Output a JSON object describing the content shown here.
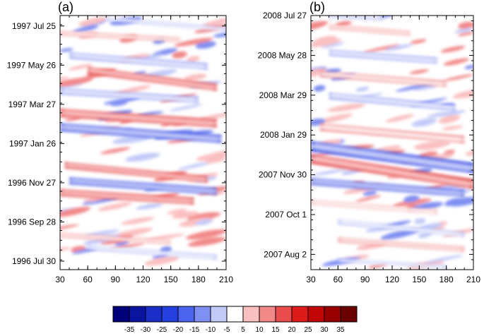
{
  "chart_data": [
    {
      "type": "heatmap",
      "panel_label": "(a)",
      "xticks": [
        "30",
        "60",
        "90",
        "120",
        "150",
        "180",
        "210"
      ],
      "xlim": [
        30,
        210
      ],
      "yticks": [
        "1997 Jul 25",
        "1997 May 26",
        "1997 Mar 27",
        "1997 Jan 26",
        "1996 Nov 27",
        "1996 Sep 28",
        "1996 Jul 30"
      ],
      "ylim": [
        "1996 Jul 17",
        "1997 Aug 10"
      ],
      "bands": [
        {
          "start_x": 30,
          "end_x": 175,
          "start_date": "1996 Nov 12",
          "end_date": "1996 Oct 30",
          "value": 30,
          "thickness_days": 12
        },
        {
          "start_x": 40,
          "end_x": 200,
          "start_date": "1996 Nov 30",
          "end_date": "1996 Nov 14",
          "value": -30,
          "thickness_days": 12
        },
        {
          "start_x": 35,
          "end_x": 190,
          "start_date": "1996 Dec 24",
          "end_date": "1996 Dec 2",
          "value": 30,
          "thickness_days": 11
        },
        {
          "start_x": 30,
          "end_x": 205,
          "start_date": "1997 Feb 20",
          "end_date": "1997 Feb 2",
          "value": -30,
          "thickness_days": 14
        },
        {
          "start_x": 30,
          "end_x": 200,
          "start_date": "1997 Mar 14",
          "end_date": "1997 Feb 26",
          "value": 30,
          "thickness_days": 14
        },
        {
          "start_x": 30,
          "end_x": 180,
          "start_date": "1997 Apr 16",
          "end_date": "1997 Apr 3",
          "value": -25,
          "thickness_days": 10
        },
        {
          "start_x": 60,
          "end_x": 200,
          "start_date": "1997 May 18",
          "end_date": "1997 Apr 22",
          "value": 30,
          "thickness_days": 12
        },
        {
          "start_x": 40,
          "end_x": 190,
          "start_date": "1997 Jun 10",
          "end_date": "1997 May 24",
          "value": -25,
          "thickness_days": 10
        },
        {
          "start_x": 30,
          "end_x": 150,
          "start_date": "1996 Sep 8",
          "end_date": "1996 Aug 28",
          "value": 20,
          "thickness_days": 8
        },
        {
          "start_x": 60,
          "end_x": 200,
          "start_date": "1996 Aug 20",
          "end_date": "1996 Aug 5",
          "value": -15,
          "thickness_days": 8
        },
        {
          "start_x": 30,
          "end_x": 160,
          "start_date": "1997 Jul 14",
          "end_date": "1997 Jul 4",
          "value": 20,
          "thickness_days": 8
        },
        {
          "start_x": 80,
          "end_x": 210,
          "start_date": "1997 Aug 5",
          "end_date": "1997 Jul 20",
          "value": -15,
          "thickness_days": 7
        }
      ]
    },
    {
      "type": "heatmap",
      "panel_label": "(b)",
      "xticks": [
        "30",
        "60",
        "90",
        "120",
        "150",
        "180",
        "210"
      ],
      "xlim": [
        30,
        210
      ],
      "yticks": [
        "2008 Jul 27",
        "2008 May 28",
        "2008 Mar 29",
        "2008 Jan 29",
        "2007 Nov 30",
        "2007 Oct 1",
        "2007 Aug 2"
      ],
      "ylim": [
        "2007 Jul 10",
        "2008 Jul 27"
      ],
      "bands": [
        {
          "start_x": 30,
          "end_x": 200,
          "start_date": "2007 Nov 20",
          "end_date": "2007 Nov 2",
          "value": -30,
          "thickness_days": 12
        },
        {
          "start_x": 30,
          "end_x": 210,
          "start_date": "2007 Dec 24",
          "end_date": "2007 Nov 16",
          "value": 30,
          "thickness_days": 16
        },
        {
          "start_x": 30,
          "end_x": 210,
          "start_date": "2008 Jan 12",
          "end_date": "2007 Dec 10",
          "value": -30,
          "thickness_days": 18
        },
        {
          "start_x": 40,
          "end_x": 200,
          "start_date": "2008 Feb 10",
          "end_date": "2008 Jan 22",
          "value": 25,
          "thickness_days": 12
        },
        {
          "start_x": 50,
          "end_x": 190,
          "start_date": "2008 Mar 28",
          "end_date": "2008 Mar 10",
          "value": -25,
          "thickness_days": 10
        },
        {
          "start_x": 40,
          "end_x": 180,
          "start_date": "2008 Apr 30",
          "end_date": "2008 Apr 15",
          "value": 25,
          "thickness_days": 10
        },
        {
          "start_x": 50,
          "end_x": 170,
          "start_date": "2008 Jun 1",
          "end_date": "2008 May 20",
          "value": -20,
          "thickness_days": 10
        },
        {
          "start_x": 50,
          "end_x": 140,
          "start_date": "2008 Jul 10",
          "end_date": "2008 Jun 30",
          "value": 20,
          "thickness_days": 8
        },
        {
          "start_x": 50,
          "end_x": 110,
          "start_date": "2008 Jul 26",
          "end_date": "2008 Jul 22",
          "value": -20,
          "thickness_days": 5
        },
        {
          "start_x": 60,
          "end_x": 200,
          "start_date": "2007 Sep 20",
          "end_date": "2007 Sep 1",
          "value": -15,
          "thickness_days": 8
        },
        {
          "start_x": 60,
          "end_x": 200,
          "start_date": "2007 Aug 24",
          "end_date": "2007 Aug 10",
          "value": 25,
          "thickness_days": 8
        },
        {
          "start_x": 30,
          "end_x": 170,
          "start_date": "2007 Oct 20",
          "end_date": "2007 Oct 5",
          "value": 15,
          "thickness_days": 8
        },
        {
          "start_x": 60,
          "end_x": 180,
          "start_date": "2007 Jul 24",
          "end_date": "2007 Jul 14",
          "value": -15,
          "thickness_days": 6
        }
      ]
    }
  ],
  "colorbar": {
    "labels": [
      "-35",
      "-30",
      "-25",
      "-20",
      "-15",
      "-10",
      "-5",
      "5",
      "10",
      "15",
      "20",
      "25",
      "30",
      "35"
    ],
    "colors": [
      "#00007a",
      "#0a14a0",
      "#1a2ec8",
      "#2540e0",
      "#4a64ee",
      "#8090f2",
      "#c2caf8",
      "#ffffff",
      "#fac0c0",
      "#f28888",
      "#ea4c4c",
      "#de1a1a",
      "#c00606",
      "#980000",
      "#6a0000"
    ]
  }
}
